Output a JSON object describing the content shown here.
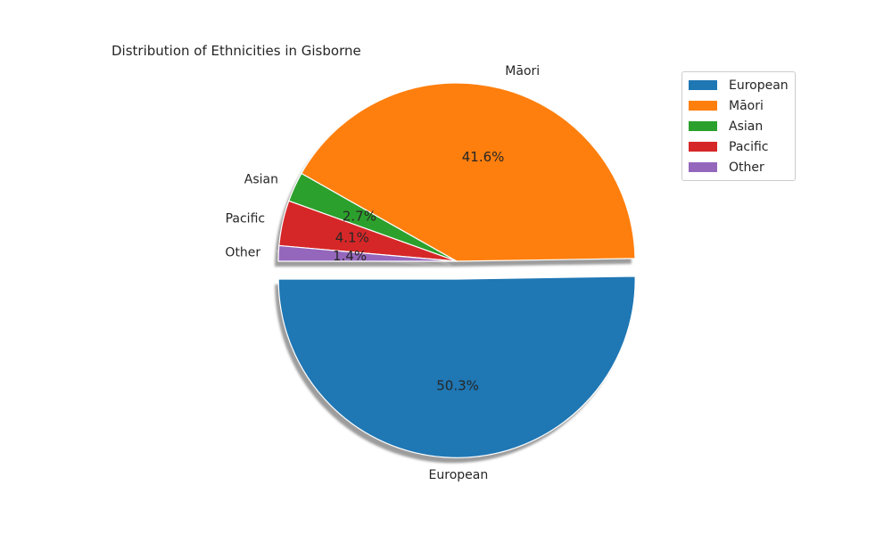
{
  "chart_data": {
    "type": "pie",
    "title": "Distribution of Ethnicities in Gisborne",
    "slices": [
      {
        "label": "European",
        "value": 50.3,
        "pct_label": "50.3%",
        "color": "#1f77b4",
        "exploded": true
      },
      {
        "label": "Māori",
        "value": 41.6,
        "pct_label": "41.6%",
        "color": "#ff7f0e",
        "exploded": false
      },
      {
        "label": "Asian",
        "value": 2.7,
        "pct_label": "2.7%",
        "color": "#2ca02c",
        "exploded": false
      },
      {
        "label": "Pacific",
        "value": 4.1,
        "pct_label": "4.1%",
        "color": "#d62728",
        "exploded": false
      },
      {
        "label": "Other",
        "value": 1.4,
        "pct_label": "1.4%",
        "color": "#9467bd",
        "exploded": false
      }
    ],
    "start_angle": 180,
    "shadow": true,
    "legend": {
      "position": "top-right",
      "entries": [
        "European",
        "Māori",
        "Asian",
        "Pacific",
        "Other"
      ]
    }
  }
}
